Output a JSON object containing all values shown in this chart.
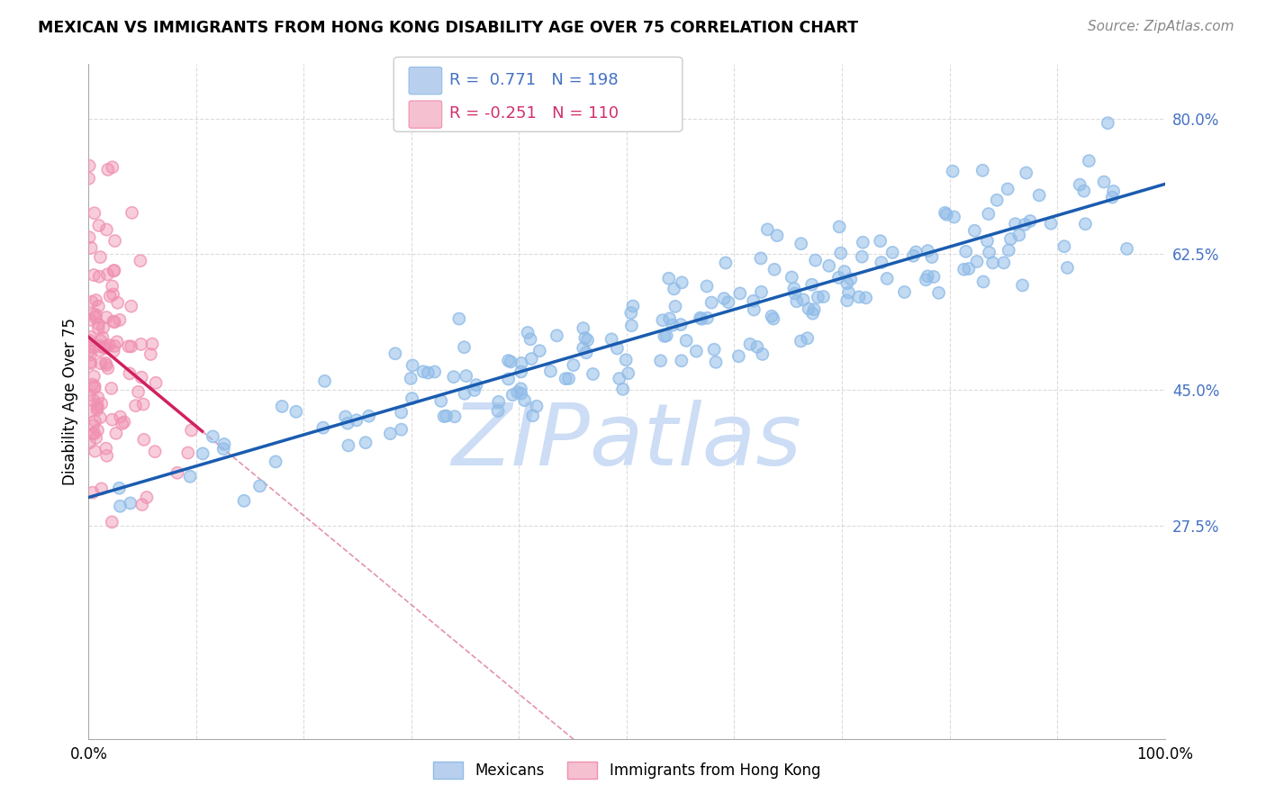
{
  "title": "MEXICAN VS IMMIGRANTS FROM HONG KONG DISABILITY AGE OVER 75 CORRELATION CHART",
  "source": "Source: ZipAtlas.com",
  "ylabel": "Disability Age Over 75",
  "xlim": [
    0.0,
    1.0
  ],
  "ylim": [
    0.0,
    0.87
  ],
  "xticks": [
    0.0,
    0.1,
    0.2,
    0.3,
    0.4,
    0.5,
    0.6,
    0.7,
    0.8,
    0.9,
    1.0
  ],
  "xticklabels": [
    "0.0%",
    "",
    "",
    "",
    "",
    "",
    "",
    "",
    "",
    "",
    "100.0%"
  ],
  "yticks": [
    0.275,
    0.45,
    0.625,
    0.8
  ],
  "yticklabels": [
    "27.5%",
    "45.0%",
    "62.5%",
    "80.0%"
  ],
  "blue_scatter_color": "#90bce8",
  "pink_scatter_color": "#f090b0",
  "blue_line_color": "#1a5cb0",
  "pink_line_color": "#d02060",
  "pink_dashed_color": "#e080a0",
  "watermark": "ZIPatlas",
  "watermark_color": "#ccddf5",
  "background_color": "#ffffff",
  "grid_color": "#cccccc",
  "ytick_color": "#4472c4",
  "legend_blue_face": "#b8d0ed",
  "legend_pink_face": "#f5c0d0",
  "legend_text_blue": "#4472c4",
  "legend_text_pink": "#d03070"
}
